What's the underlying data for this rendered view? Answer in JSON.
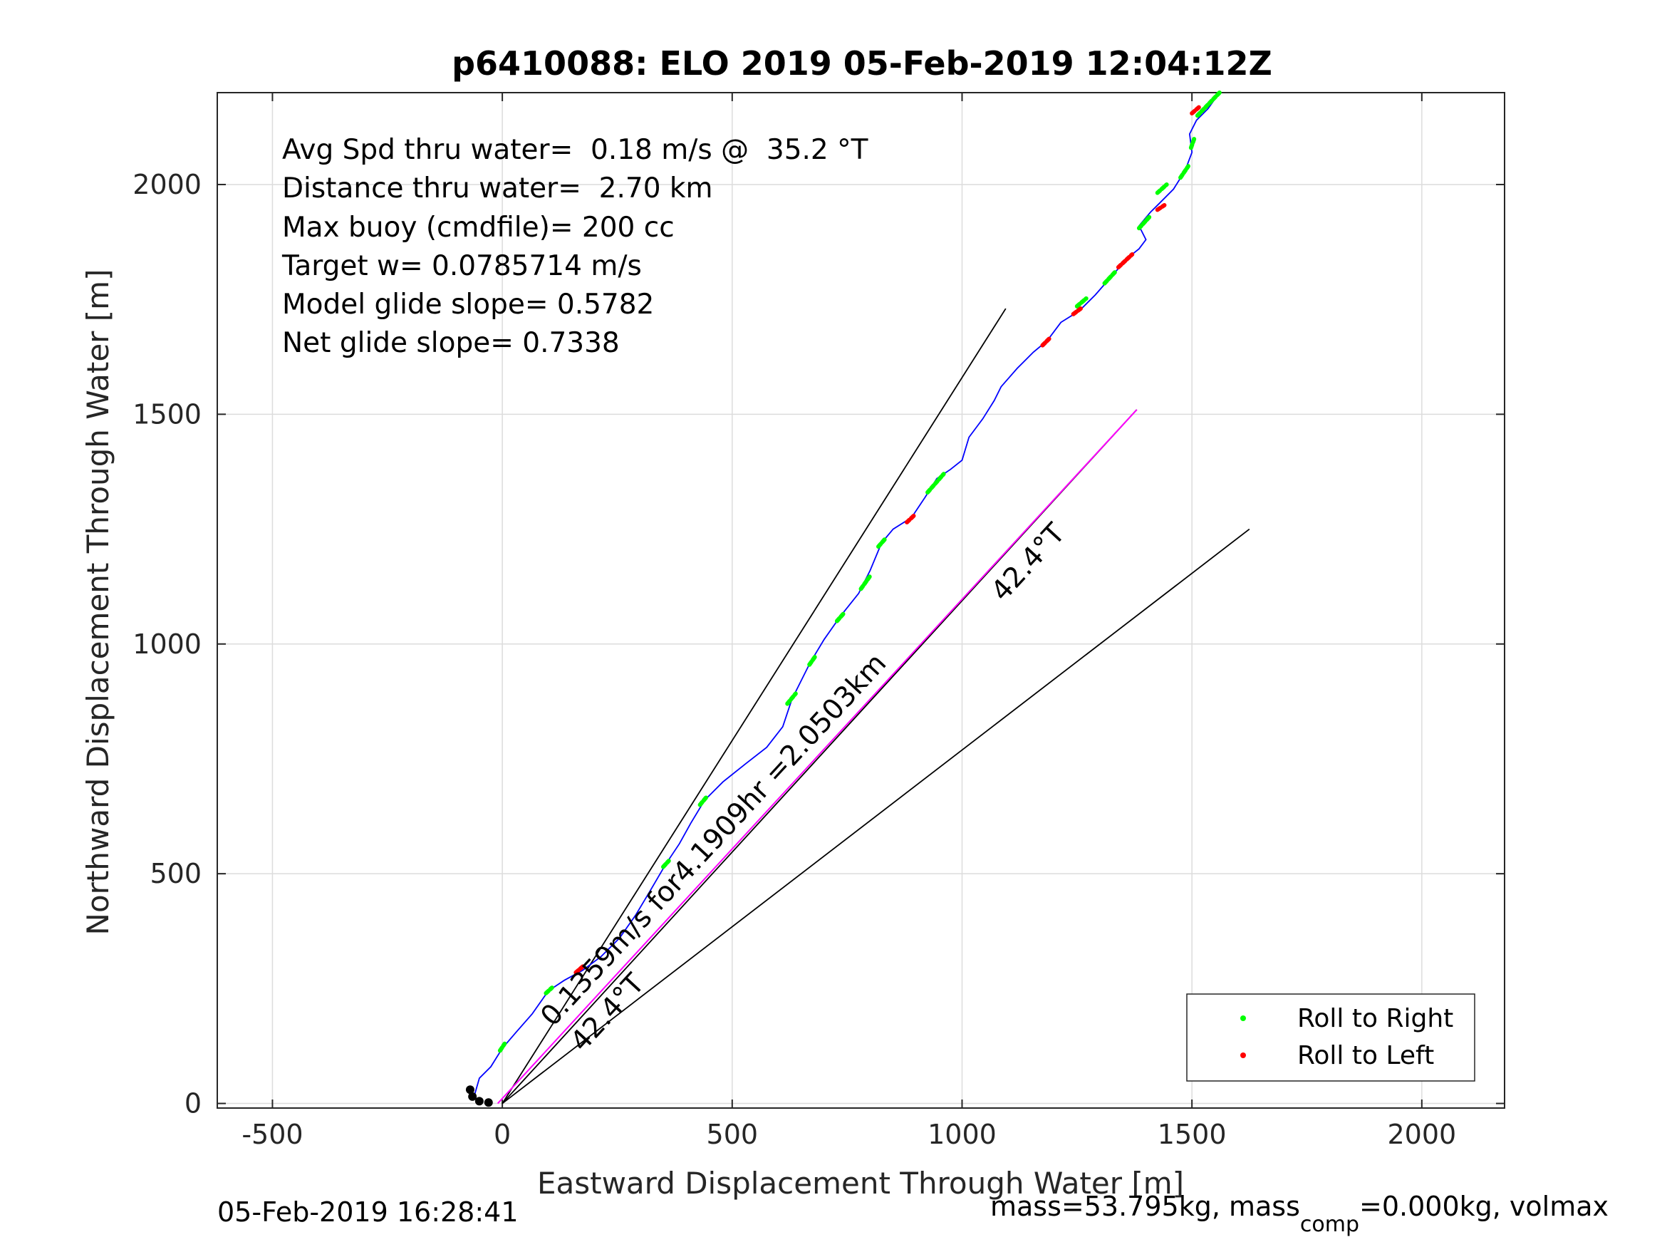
{
  "title": "p6410088: ELO 2019 05-Feb-2019 12:04:12Z",
  "annotations": [
    "Avg Spd thru water=  0.18 m/s @  35.2 °T",
    "Distance thru water=  2.70 km",
    "Max buoy (cmdfile)= 200 cc",
    "Target w= 0.0785714 m/s",
    "Model glide slope= 0.5782",
    "Net glide slope= 0.7338"
  ],
  "footer": {
    "timestamp": "05-Feb-2019 16:28:41",
    "mass_prefix": "mass=53.795kg, mass",
    "mass_sub": "comp",
    "mass_suffix": "=0.000kg, volmax"
  },
  "legend": {
    "right_label": "Roll to Right",
    "left_label": "Roll to Left",
    "placement": "bottom-right"
  },
  "colors": {
    "track": "#0000ff",
    "roll_right": "#00ff00",
    "roll_left": "#ff0000",
    "magenta": "#ff00ff",
    "guides": "#000000",
    "grid": "#dcdcdc"
  },
  "chart_data": {
    "type": "line",
    "xlabel": "Eastward Displacement Through Water [m]",
    "ylabel": "Northward Displacement Through Water [m]",
    "xlim": [
      -620,
      2180
    ],
    "ylim": [
      -10,
      2200
    ],
    "xticks": [
      -500,
      0,
      500,
      1000,
      1500,
      2000
    ],
    "yticks": [
      0,
      500,
      1000,
      1500,
      2000
    ],
    "grid": true,
    "track": [
      [
        -60,
        20
      ],
      [
        -50,
        55
      ],
      [
        -25,
        80
      ],
      [
        0,
        120
      ],
      [
        30,
        155
      ],
      [
        65,
        195
      ],
      [
        100,
        245
      ],
      [
        135,
        268
      ],
      [
        175,
        290
      ],
      [
        215,
        320
      ],
      [
        255,
        360
      ],
      [
        290,
        410
      ],
      [
        320,
        460
      ],
      [
        355,
        520
      ],
      [
        385,
        565
      ],
      [
        410,
        610
      ],
      [
        440,
        660
      ],
      [
        480,
        700
      ],
      [
        530,
        740
      ],
      [
        575,
        775
      ],
      [
        610,
        820
      ],
      [
        630,
        880
      ],
      [
        670,
        960
      ],
      [
        700,
        1010
      ],
      [
        735,
        1060
      ],
      [
        775,
        1110
      ],
      [
        800,
        1160
      ],
      [
        825,
        1220
      ],
      [
        850,
        1250
      ],
      [
        890,
        1275
      ],
      [
        920,
        1320
      ],
      [
        945,
        1360
      ],
      [
        975,
        1380
      ],
      [
        1000,
        1400
      ],
      [
        1015,
        1450
      ],
      [
        1045,
        1490
      ],
      [
        1070,
        1530
      ],
      [
        1085,
        1560
      ],
      [
        1120,
        1600
      ],
      [
        1155,
        1635
      ],
      [
        1185,
        1660
      ],
      [
        1215,
        1700
      ],
      [
        1255,
        1725
      ],
      [
        1290,
        1760
      ],
      [
        1325,
        1800
      ],
      [
        1360,
        1840
      ],
      [
        1385,
        1860
      ],
      [
        1400,
        1880
      ],
      [
        1385,
        1910
      ],
      [
        1410,
        1940
      ],
      [
        1430,
        1960
      ],
      [
        1460,
        1990
      ],
      [
        1485,
        2030
      ],
      [
        1500,
        2070
      ],
      [
        1495,
        2110
      ],
      [
        1510,
        2140
      ],
      [
        1535,
        2165
      ],
      [
        1560,
        2200
      ]
    ],
    "roll_right_segments": [
      [
        [
          -5,
          115
        ],
        [
          5,
          130
        ]
      ],
      [
        [
          95,
          240
        ],
        [
          108,
          252
        ]
      ],
      [
        [
          350,
          515
        ],
        [
          362,
          528
        ]
      ],
      [
        [
          430,
          650
        ],
        [
          445,
          668
        ]
      ],
      [
        [
          620,
          870
        ],
        [
          638,
          892
        ]
      ],
      [
        [
          668,
          955
        ],
        [
          682,
          975
        ]
      ],
      [
        [
          728,
          1050
        ],
        [
          742,
          1066
        ]
      ],
      [
        [
          780,
          1120
        ],
        [
          800,
          1148
        ]
      ],
      [
        [
          818,
          1212
        ],
        [
          832,
          1228
        ]
      ],
      [
        [
          925,
          1330
        ],
        [
          960,
          1370
        ]
      ],
      [
        [
          1250,
          1735
        ],
        [
          1270,
          1752
        ]
      ],
      [
        [
          1310,
          1785
        ],
        [
          1335,
          1812
        ]
      ],
      [
        [
          1385,
          1905
        ],
        [
          1408,
          1930
        ]
      ],
      [
        [
          1425,
          1982
        ],
        [
          1445,
          2000
        ]
      ],
      [
        [
          1475,
          2015
        ],
        [
          1492,
          2040
        ]
      ],
      [
        [
          1498,
          2080
        ],
        [
          1505,
          2100
        ]
      ],
      [
        [
          1512,
          2150
        ],
        [
          1560,
          2200
        ]
      ]
    ],
    "roll_left_segments": [
      [
        [
          160,
          285
        ],
        [
          175,
          298
        ]
      ],
      [
        [
          880,
          1265
        ],
        [
          898,
          1282
        ]
      ],
      [
        [
          1175,
          1650
        ],
        [
          1190,
          1665
        ]
      ],
      [
        [
          1242,
          1718
        ],
        [
          1258,
          1730
        ]
      ],
      [
        [
          1340,
          1820
        ],
        [
          1370,
          1848
        ]
      ],
      [
        [
          1425,
          1945
        ],
        [
          1440,
          1955
        ]
      ],
      [
        [
          1500,
          2155
        ],
        [
          1515,
          2168
        ]
      ]
    ],
    "start_points": [
      [
        -70,
        30
      ],
      [
        -65,
        15
      ],
      [
        -50,
        5
      ],
      [
        -30,
        2
      ]
    ],
    "magenta_line": [
      [
        -10,
        0
      ],
      [
        1380,
        1510
      ]
    ],
    "guide_lines": [
      [
        [
          0,
          0
        ],
        [
          1095,
          1730
        ]
      ],
      [
        [
          0,
          0
        ],
        [
          1380,
          1510
        ]
      ],
      [
        [
          0,
          0
        ],
        [
          1625,
          1250
        ]
      ]
    ],
    "labels": {
      "speed_label": "0.1359m/s for4.1909hr =2.0503km",
      "heading_upper": "42.4°T",
      "heading_lower": "42.4°T"
    }
  }
}
